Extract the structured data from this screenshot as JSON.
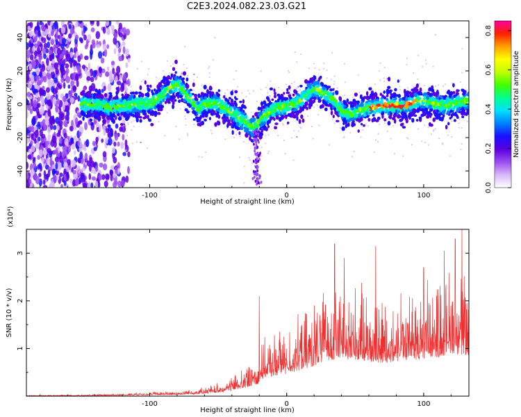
{
  "chart_data": [
    {
      "type": "heatmap",
      "title": "C2E3.2024.082.23.03.G21",
      "xlabel": "Height of straight line (km)",
      "ylabel": "Frequency (Hz)",
      "xlim": [
        -190,
        133
      ],
      "ylim": [
        -50,
        50
      ],
      "xticks": [
        -100,
        0,
        100
      ],
      "yticks": [
        -40,
        -20,
        0,
        20,
        40
      ],
      "colorbar": {
        "label": "Normalized spectral amplitude",
        "range": [
          0,
          0.85
        ],
        "ticks": [
          "0.0",
          "0.2",
          "0.4",
          "0.6",
          "0.8"
        ],
        "colors": [
          "#ffffff",
          "#d8b8f8",
          "#9b4cf0",
          "#5b00e0",
          "#1a10ff",
          "#0080ff",
          "#00e0ff",
          "#00ff90",
          "#40ff00",
          "#c0ff00",
          "#ffff00",
          "#ffa000",
          "#ff2000",
          "#ff00a0"
        ]
      },
      "ridge": {
        "x": [
          -150,
          -140,
          -130,
          -120,
          -110,
          -100,
          -95,
          -90,
          -85,
          -80,
          -75,
          -70,
          -65,
          -60,
          -55,
          -50,
          -45,
          -40,
          -35,
          -30,
          -25,
          -22,
          -20,
          -15,
          -10,
          -5,
          0,
          5,
          10,
          15,
          20,
          25,
          30,
          35,
          40,
          45,
          50,
          55,
          60,
          65,
          70,
          75,
          80,
          85,
          90,
          95,
          100,
          105,
          110,
          115,
          120,
          125,
          130
        ],
        "y": [
          0,
          0,
          -2,
          -1,
          0,
          0,
          3,
          6,
          10,
          12,
          8,
          2,
          -3,
          0,
          1,
          0,
          -3,
          -5,
          -8,
          -11,
          -14,
          -13,
          -10,
          -6,
          -3,
          -2,
          -1,
          0,
          2,
          6,
          9,
          8,
          5,
          2,
          -4,
          -6,
          -5,
          -3,
          -2,
          -1,
          -1,
          -1,
          -1,
          -1,
          0,
          2,
          2,
          1,
          0,
          -1,
          0,
          1,
          2
        ]
      }
    },
    {
      "type": "line",
      "xlabel": "Height of straight line (km)",
      "ylabel": "SNR (10 * v/v)",
      "scale_label": "(x10⁴)",
      "xlim": [
        -190,
        133
      ],
      "ylim": [
        0,
        3.5
      ],
      "xticks": [
        -100,
        0,
        100
      ],
      "yticks": [
        1,
        2,
        3
      ],
      "series_color": "#f03030",
      "envelope": {
        "x": [
          -190,
          -150,
          -120,
          -100,
          -80,
          -60,
          -50,
          -40,
          -35,
          -30,
          -25,
          -20,
          -18,
          -15,
          -10,
          0,
          10,
          20,
          30,
          40,
          50,
          60,
          70,
          80,
          90,
          100,
          110,
          115,
          120,
          125,
          130,
          133
        ],
        "y": [
          0.02,
          0.03,
          0.06,
          0.1,
          0.12,
          0.2,
          0.3,
          0.45,
          0.6,
          0.7,
          0.9,
          1.05,
          1.15,
          1.3,
          1.4,
          1.55,
          1.8,
          2.1,
          2.5,
          2.6,
          2.5,
          2.4,
          2.3,
          2.4,
          2.5,
          2.6,
          2.7,
          2.8,
          3.0,
          2.9,
          2.8,
          2.7
        ]
      },
      "peaks": [
        {
          "x": -20,
          "y": 2.1
        },
        {
          "x": 35,
          "y": 3.2
        },
        {
          "x": 42,
          "y": 2.9
        },
        {
          "x": 65,
          "y": 3.15
        },
        {
          "x": 100,
          "y": 2.7
        },
        {
          "x": 115,
          "y": 3.05
        },
        {
          "x": 123,
          "y": 3.3
        },
        {
          "x": 128,
          "y": 3.5
        }
      ]
    }
  ]
}
